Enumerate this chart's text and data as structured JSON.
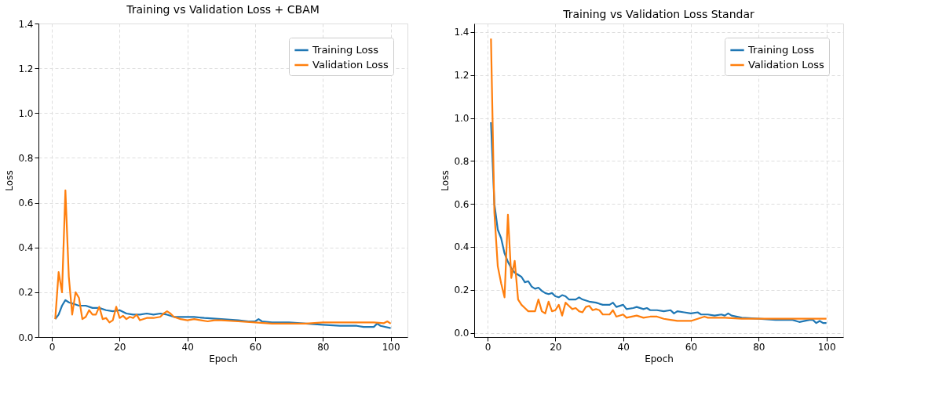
{
  "chart_data": [
    {
      "type": "line",
      "title": "Training vs Validation Loss + CBAM",
      "xlabel": "Epoch",
      "ylabel": "Loss",
      "xlim": [
        -3.95,
        104.95
      ],
      "ylim": [
        0,
        1.4
      ],
      "xticks": [
        0,
        20,
        40,
        60,
        80,
        100
      ],
      "yticks": [
        {
          "value": 0,
          "label": "0.0"
        },
        0.2,
        0.4,
        0.6,
        0.8,
        {
          "value": 1,
          "label": "1.0"
        },
        1.2,
        1.4
      ],
      "grid": true,
      "legend": "top right",
      "line_style": "solid",
      "series": [
        {
          "name": "Training Loss",
          "color": "#1f77b4",
          "x": [
            1,
            2,
            3,
            4,
            5,
            6,
            7,
            8,
            10,
            12,
            14,
            16,
            18,
            20,
            22,
            24,
            26,
            28,
            30,
            32,
            34,
            36,
            38,
            40,
            42,
            45,
            50,
            55,
            58,
            60,
            61,
            62,
            65,
            70,
            75,
            80,
            85,
            90,
            92,
            95,
            96,
            97,
            100
          ],
          "values": [
            0.08,
            0.1,
            0.14,
            0.165,
            0.155,
            0.15,
            0.145,
            0.14,
            0.14,
            0.13,
            0.13,
            0.12,
            0.115,
            0.12,
            0.105,
            0.1,
            0.1,
            0.105,
            0.1,
            0.105,
            0.1,
            0.09,
            0.09,
            0.09,
            0.09,
            0.085,
            0.08,
            0.075,
            0.07,
            0.07,
            0.08,
            0.07,
            0.065,
            0.065,
            0.06,
            0.055,
            0.05,
            0.05,
            0.045,
            0.045,
            0.06,
            0.05,
            0.04
          ]
        },
        {
          "name": "Validation Loss",
          "color": "#ff7f0e",
          "x": [
            1,
            2,
            3,
            4,
            5,
            6,
            7,
            8,
            9,
            10,
            11,
            12,
            13,
            14,
            15,
            16,
            17,
            18,
            19,
            20,
            21,
            22,
            23,
            24,
            25,
            26,
            28,
            30,
            32,
            33,
            34,
            35,
            36,
            38,
            40,
            42,
            44,
            46,
            48,
            50,
            55,
            60,
            65,
            70,
            75,
            80,
            85,
            90,
            95,
            98,
            99,
            100
          ],
          "values": [
            0.08,
            0.29,
            0.2,
            0.655,
            0.27,
            0.1,
            0.2,
            0.175,
            0.08,
            0.09,
            0.12,
            0.1,
            0.1,
            0.135,
            0.08,
            0.085,
            0.065,
            0.075,
            0.135,
            0.085,
            0.095,
            0.08,
            0.09,
            0.085,
            0.1,
            0.075,
            0.085,
            0.085,
            0.09,
            0.105,
            0.115,
            0.105,
            0.09,
            0.08,
            0.075,
            0.08,
            0.075,
            0.07,
            0.075,
            0.075,
            0.07,
            0.065,
            0.06,
            0.06,
            0.06,
            0.065,
            0.065,
            0.065,
            0.065,
            0.062,
            0.07,
            0.06
          ]
        }
      ]
    },
    {
      "type": "line",
      "title": "Training vs Validation Loss Standar",
      "xlabel": "Epoch",
      "ylabel": "Loss",
      "xlim": [
        -3.95,
        104.95
      ],
      "ylim": [
        -0.02,
        1.44
      ],
      "xticks": [
        0,
        20,
        40,
        60,
        80,
        100
      ],
      "yticks": [
        {
          "value": 0,
          "label": "0.0"
        },
        0.2,
        0.4,
        0.6,
        0.8,
        {
          "value": 1,
          "label": "1.0"
        },
        1.2,
        1.4
      ],
      "grid": true,
      "legend": "top right",
      "line_style": "solid",
      "series": [
        {
          "name": "Training Loss",
          "color": "#1f77b4",
          "x": [
            1,
            2,
            3,
            4,
            5,
            6,
            7,
            8,
            9,
            10,
            11,
            12,
            13,
            14,
            15,
            16,
            17,
            18,
            19,
            20,
            21,
            22,
            23,
            24,
            26,
            27,
            28,
            30,
            32,
            34,
            36,
            37,
            38,
            40,
            41,
            43,
            44,
            46,
            47,
            48,
            50,
            52,
            54,
            55,
            56,
            58,
            60,
            62,
            63,
            65,
            67,
            69,
            70,
            71,
            72,
            75,
            80,
            85,
            90,
            92,
            95,
            96,
            97,
            98,
            99,
            100
          ],
          "values": [
            0.98,
            0.6,
            0.48,
            0.44,
            0.37,
            0.33,
            0.3,
            0.28,
            0.27,
            0.26,
            0.235,
            0.24,
            0.215,
            0.205,
            0.21,
            0.195,
            0.185,
            0.18,
            0.185,
            0.17,
            0.165,
            0.175,
            0.17,
            0.155,
            0.155,
            0.165,
            0.155,
            0.145,
            0.14,
            0.13,
            0.13,
            0.14,
            0.12,
            0.13,
            0.11,
            0.115,
            0.12,
            0.11,
            0.115,
            0.105,
            0.105,
            0.1,
            0.105,
            0.09,
            0.1,
            0.095,
            0.09,
            0.095,
            0.085,
            0.085,
            0.08,
            0.085,
            0.08,
            0.09,
            0.08,
            0.07,
            0.065,
            0.06,
            0.06,
            0.05,
            0.06,
            0.06,
            0.045,
            0.055,
            0.045,
            0.045
          ]
        },
        {
          "name": "Validation Loss",
          "color": "#ff7f0e",
          "x": [
            1,
            2,
            3,
            4,
            5,
            6,
            7,
            8,
            9,
            10,
            11,
            12,
            13,
            14,
            15,
            16,
            17,
            18,
            19,
            20,
            21,
            22,
            23,
            24,
            25,
            26,
            27,
            28,
            29,
            30,
            31,
            32,
            33,
            34,
            36,
            37,
            38,
            40,
            41,
            44,
            46,
            48,
            50,
            52,
            54,
            56,
            58,
            60,
            62,
            64,
            65,
            70,
            75,
            80,
            85,
            90,
            95,
            100
          ],
          "values": [
            1.37,
            0.56,
            0.31,
            0.23,
            0.165,
            0.55,
            0.255,
            0.335,
            0.155,
            0.13,
            0.115,
            0.1,
            0.1,
            0.1,
            0.155,
            0.1,
            0.09,
            0.145,
            0.1,
            0.105,
            0.13,
            0.08,
            0.14,
            0.125,
            0.11,
            0.115,
            0.1,
            0.095,
            0.12,
            0.125,
            0.105,
            0.11,
            0.105,
            0.085,
            0.085,
            0.105,
            0.075,
            0.085,
            0.07,
            0.08,
            0.07,
            0.075,
            0.075,
            0.065,
            0.06,
            0.055,
            0.055,
            0.055,
            0.065,
            0.075,
            0.07,
            0.07,
            0.065,
            0.065,
            0.065,
            0.065,
            0.065,
            0.065
          ]
        }
      ]
    }
  ]
}
